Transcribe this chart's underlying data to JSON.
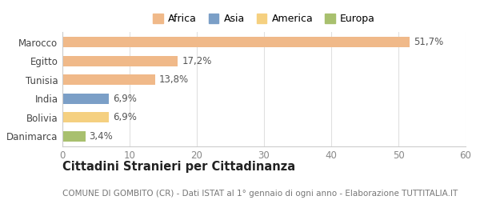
{
  "categories": [
    "Danimarca",
    "Bolivia",
    "India",
    "Tunisia",
    "Egitto",
    "Marocco"
  ],
  "values": [
    3.4,
    6.9,
    6.9,
    13.8,
    17.2,
    51.7
  ],
  "labels": [
    "3,4%",
    "6,9%",
    "6,9%",
    "13,8%",
    "17,2%",
    "51,7%"
  ],
  "colors": [
    "#a8c06e",
    "#f5d080",
    "#7b9fc7",
    "#f0b989",
    "#f0b989",
    "#f0b989"
  ],
  "legend_items": [
    {
      "label": "Africa",
      "color": "#f0b989"
    },
    {
      "label": "Asia",
      "color": "#7b9fc7"
    },
    {
      "label": "America",
      "color": "#f5d080"
    },
    {
      "label": "Europa",
      "color": "#a8c06e"
    }
  ],
  "xlim": [
    0,
    60
  ],
  "xticks": [
    0,
    10,
    20,
    30,
    40,
    50,
    60
  ],
  "title": "Cittadini Stranieri per Cittadinanza",
  "subtitle": "COMUNE DI GOMBITO (CR) - Dati ISTAT al 1° gennaio di ogni anno - Elaborazione TUTTITALIA.IT",
  "background_color": "#ffffff",
  "grid_color": "#e0e0e0",
  "bar_height": 0.55,
  "label_fontsize": 8.5,
  "tick_fontsize": 8.5,
  "title_fontsize": 10.5,
  "subtitle_fontsize": 7.5
}
